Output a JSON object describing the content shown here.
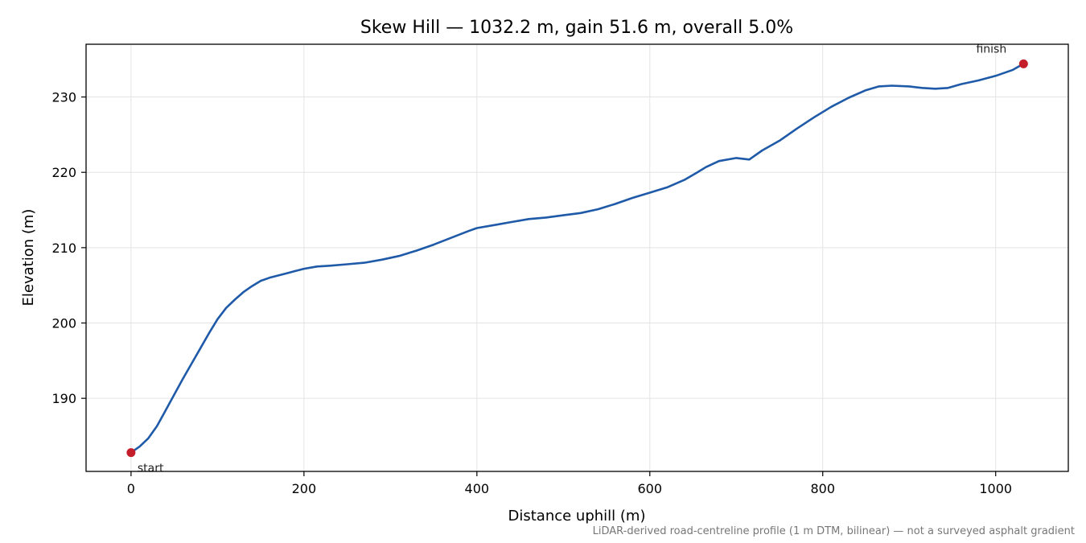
{
  "chart_data": {
    "type": "line",
    "title": "Skew Hill — 1032.2 m, gain 51.6 m, overall 5.0%",
    "xlabel": "Distance uphill (m)",
    "ylabel": "Elevation (m)",
    "xlim": [
      -52,
      1084
    ],
    "ylim": [
      180.3,
      237.0
    ],
    "xticks": [
      0,
      200,
      400,
      600,
      800,
      1000
    ],
    "yticks": [
      190,
      200,
      210,
      220,
      230
    ],
    "grid": true,
    "colors": {
      "line": "#1f5aa8",
      "marker": "#c41e2a"
    },
    "series": [
      {
        "x": [
          0,
          10,
          20,
          30,
          40,
          50,
          60,
          70,
          80,
          90,
          100,
          110,
          120,
          130,
          140,
          150,
          160,
          170,
          180,
          190,
          200,
          215,
          230,
          250,
          270,
          290,
          310,
          330,
          350,
          370,
          390,
          400,
          420,
          440,
          460,
          480,
          500,
          520,
          540,
          560,
          580,
          600,
          620,
          640,
          655,
          665,
          680,
          700,
          715,
          730,
          750,
          770,
          790,
          810,
          830,
          850,
          865,
          880,
          900,
          915,
          930,
          945,
          960,
          980,
          1000,
          1020,
          1032.2
        ],
        "y": [
          182.8,
          183.6,
          184.7,
          186.3,
          188.4,
          190.5,
          192.6,
          194.6,
          196.6,
          198.6,
          200.5,
          202.0,
          203.1,
          204.1,
          204.9,
          205.6,
          206.0,
          206.3,
          206.6,
          206.9,
          207.2,
          207.5,
          207.6,
          207.8,
          208.0,
          208.4,
          208.9,
          209.6,
          210.4,
          211.3,
          212.2,
          212.6,
          213.0,
          213.4,
          213.8,
          214.0,
          214.3,
          214.6,
          215.1,
          215.8,
          216.6,
          217.3,
          218.0,
          219.0,
          220.0,
          220.7,
          221.5,
          221.9,
          221.7,
          222.9,
          224.2,
          225.8,
          227.3,
          228.7,
          229.9,
          230.9,
          231.4,
          231.5,
          231.4,
          231.2,
          231.1,
          231.2,
          231.7,
          232.2,
          232.8,
          233.6,
          234.4
        ]
      }
    ],
    "annotations": [
      {
        "text": "start",
        "x": 0,
        "y": 182.8
      },
      {
        "text": "finish",
        "x": 1032.2,
        "y": 234.4
      }
    ]
  },
  "footnote": "LiDAR-derived road-centreline profile (1 m DTM, bilinear) — not a surveyed asphalt gradient"
}
